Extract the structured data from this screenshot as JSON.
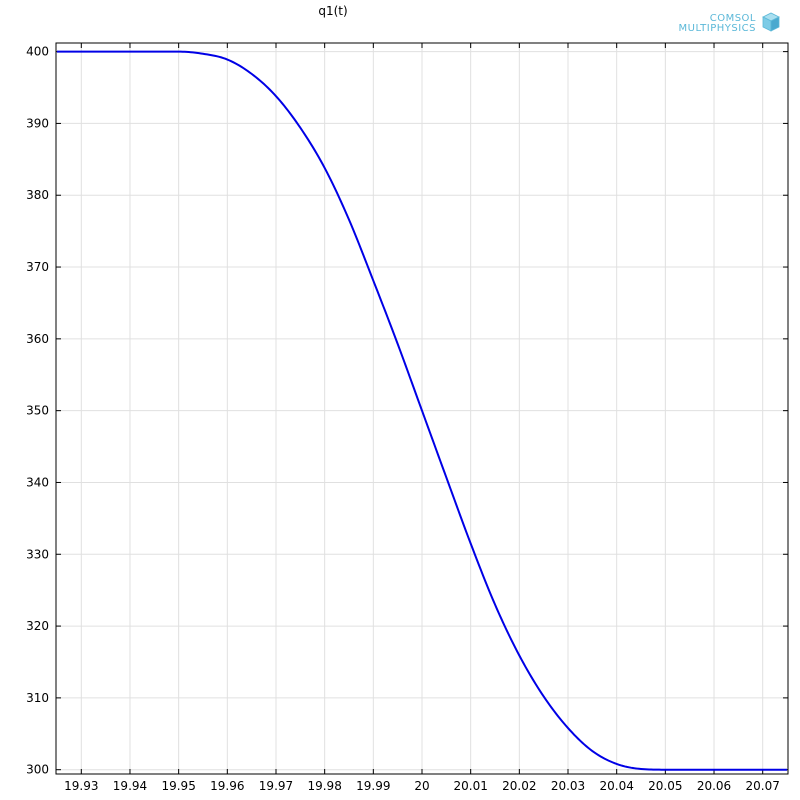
{
  "chart_data": {
    "type": "line",
    "title": "q1(t)",
    "xlabel": "",
    "ylabel": "",
    "xlim": [
      19.9248,
      20.0752
    ],
    "ylim": [
      299.4,
      401.2
    ],
    "grid": true,
    "x_ticks": [
      19.93,
      19.94,
      19.95,
      19.96,
      19.97,
      19.98,
      19.99,
      20,
      20.01,
      20.02,
      20.03,
      20.04,
      20.05,
      20.06,
      20.07
    ],
    "x_tick_labels": [
      "19.93",
      "19.94",
      "19.95",
      "19.96",
      "19.97",
      "19.98",
      "19.99",
      "20",
      "20.01",
      "20.02",
      "20.03",
      "20.04",
      "20.05",
      "20.06",
      "20.07"
    ],
    "y_ticks": [
      300,
      310,
      320,
      330,
      340,
      350,
      360,
      370,
      380,
      390,
      400
    ],
    "y_tick_labels": [
      "300",
      "310",
      "320",
      "330",
      "340",
      "350",
      "360",
      "370",
      "380",
      "390",
      "400"
    ],
    "series": [
      {
        "color": "#0000e6",
        "x": [
          19.925,
          19.93,
          19.94,
          19.95,
          19.955,
          19.96,
          19.965,
          19.97,
          19.975,
          19.98,
          19.985,
          19.99,
          19.995,
          20.0,
          20.005,
          20.01,
          20.015,
          20.02,
          20.025,
          20.03,
          20.035,
          20.04,
          20.045,
          20.05,
          20.06,
          20.075
        ],
        "y": [
          400,
          400,
          400,
          400,
          399.7,
          398.9,
          396.9,
          393.8,
          389.4,
          383.8,
          376.6,
          368.1,
          359.3,
          350.0,
          340.7,
          331.5,
          323.0,
          315.9,
          310.2,
          305.8,
          302.6,
          300.8,
          300.1,
          300,
          300,
          300
        ]
      }
    ]
  },
  "logo": {
    "line1": "COMSOL",
    "line2": "MULTIPHYSICS",
    "color": "#5bb8d8"
  }
}
